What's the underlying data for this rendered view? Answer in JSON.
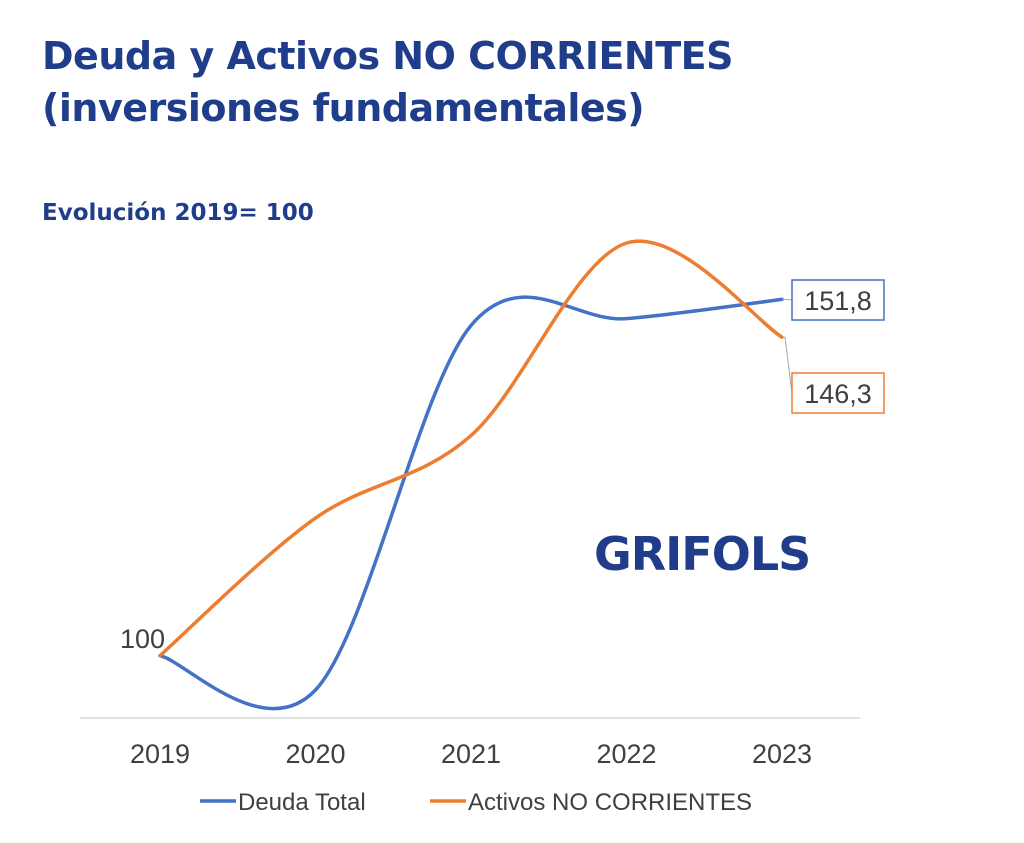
{
  "header": {
    "title_line1": "Deuda y Activos NO CORRIENTES",
    "title_line2": "(inversiones fundamentales)",
    "subtitle": "Evolución 2019= 100"
  },
  "logo": {
    "text": "GRIFOLS",
    "color": "#1f3d8a"
  },
  "chart_data": {
    "type": "line",
    "title": "",
    "xlabel": "",
    "ylabel": "",
    "categories": [
      "2019",
      "2020",
      "2021",
      "2022",
      "2023"
    ],
    "ylim": [
      95,
      160
    ],
    "grid": false,
    "legend_position": "bottom",
    "smoothed": true,
    "series": [
      {
        "name": "Deuda Total",
        "color": "#4472c4",
        "values": [
          100,
          95,
          148,
          149,
          151.8
        ],
        "end_label": "151,8"
      },
      {
        "name": "Activos NO CORRIENTES",
        "color": "#ed7d31",
        "values": [
          100,
          120,
          132,
          160,
          146.3
        ],
        "end_label": "146,3"
      }
    ],
    "start_label": "100"
  }
}
